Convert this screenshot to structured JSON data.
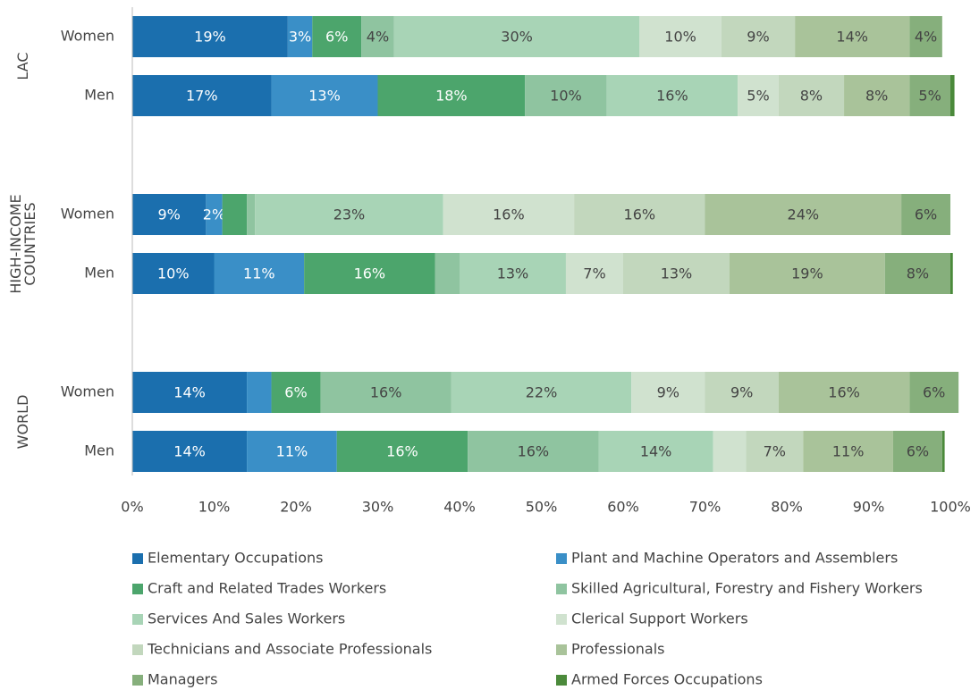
{
  "chart_data": {
    "type": "stacked-bar-horizontal",
    "groups": [
      {
        "label": [
          "LAC"
        ]
      },
      {
        "label": [
          "HIGH-INCOME",
          "COUNTRIES"
        ]
      },
      {
        "label": [
          "WORLD"
        ]
      }
    ],
    "categories": [
      "Women",
      "Men",
      "Women",
      "Men",
      "Women",
      "Men"
    ],
    "xlim": [
      0,
      100
    ],
    "xticks": [
      {
        "value": 0,
        "label": "0%"
      },
      {
        "value": 10,
        "label": "10%"
      },
      {
        "value": 20,
        "label": "20%"
      },
      {
        "value": 30,
        "label": "30%"
      },
      {
        "value": 40,
        "label": "40%"
      },
      {
        "value": 50,
        "label": "50%"
      },
      {
        "value": 60,
        "label": "60%"
      },
      {
        "value": 70,
        "label": "70%"
      },
      {
        "value": 80,
        "label": "80%"
      },
      {
        "value": 90,
        "label": "90%"
      },
      {
        "value": 100,
        "label": "100%"
      }
    ],
    "series": [
      {
        "name": "Elementary Occupations",
        "color": "#1b6fae",
        "values": [
          19,
          17,
          9,
          10,
          14,
          14
        ],
        "value_labels": [
          "19%",
          "17%",
          "9%",
          "10%",
          "14%",
          "14%"
        ]
      },
      {
        "name": "Plant and Machine Operators and Assemblers",
        "color": "#3a8fc7",
        "values": [
          3,
          13,
          2,
          11,
          3,
          11
        ],
        "value_labels": [
          "3%",
          "13%",
          "2%",
          "11%",
          null,
          "11%"
        ]
      },
      {
        "name": "Craft and Related Trades Workers",
        "color": "#4ca56c",
        "values": [
          6,
          18,
          3,
          16,
          6,
          16
        ],
        "value_labels": [
          "6%",
          "18%",
          null,
          "16%",
          "6%",
          "16%"
        ]
      },
      {
        "name": "Skilled Agricultural, Forestry and Fishery Workers",
        "color": "#8fc4a0",
        "values": [
          4,
          10,
          1,
          3,
          16,
          16
        ],
        "value_labels": [
          "4%",
          "10%",
          null,
          null,
          "16%",
          "16%"
        ]
      },
      {
        "name": "Services And Sales Workers",
        "color": "#a8d4b6",
        "values": [
          30,
          16,
          23,
          13,
          22,
          14
        ],
        "value_labels": [
          "30%",
          "16%",
          "23%",
          "13%",
          "22%",
          "14%"
        ]
      },
      {
        "name": "Clerical Support Workers",
        "color": "#d0e2cf",
        "values": [
          10,
          5,
          16,
          7,
          9,
          4
        ],
        "value_labels": [
          "10%",
          "5%",
          "16%",
          "7%",
          "9%",
          null
        ]
      },
      {
        "name": "Technicians and Associate Professionals",
        "color": "#c2d7bd",
        "values": [
          9,
          8,
          16,
          13,
          9,
          7
        ],
        "value_labels": [
          "9%",
          "8%",
          "16%",
          "13%",
          "9%",
          "7%"
        ]
      },
      {
        "name": "Professionals",
        "color": "#a9c39a",
        "values": [
          14,
          8,
          24,
          19,
          16,
          11
        ],
        "value_labels": [
          "14%",
          "8%",
          "24%",
          "19%",
          "16%",
          "11%"
        ]
      },
      {
        "name": "Managers",
        "color": "#86af7c",
        "values": [
          4,
          5,
          6,
          8,
          6,
          6
        ],
        "value_labels": [
          "4%",
          "5%",
          "6%",
          "8%",
          "6%",
          "6%"
        ]
      },
      {
        "name": "Armed Forces Occupations",
        "color": "#4b8a3b",
        "values": [
          0,
          0.5,
          0,
          0.3,
          0,
          0.3
        ],
        "value_labels": [
          null,
          null,
          null,
          null,
          null,
          null
        ]
      }
    ]
  }
}
